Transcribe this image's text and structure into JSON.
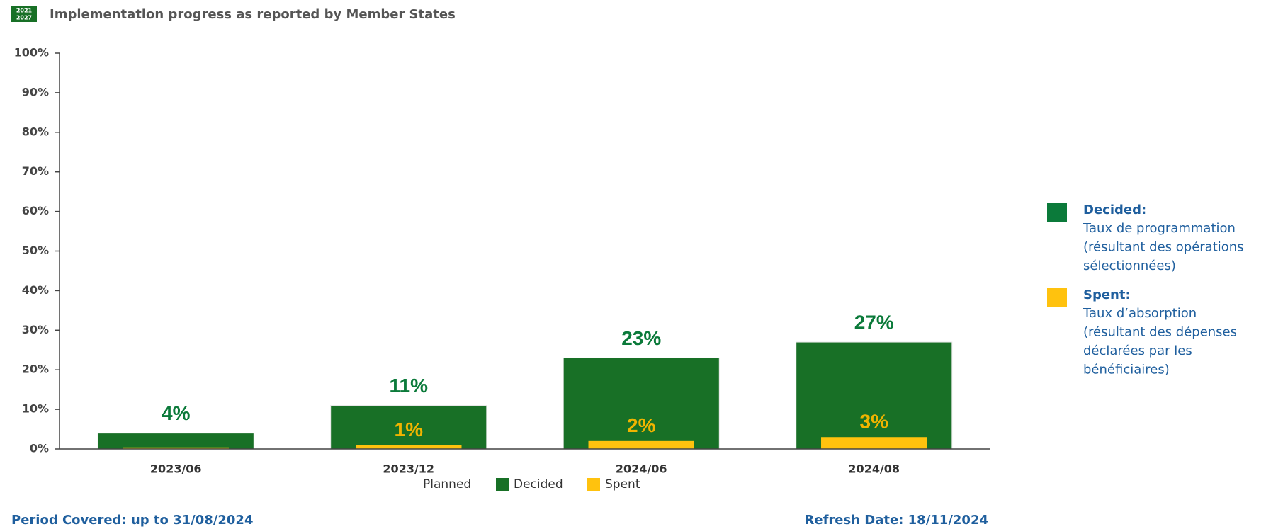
{
  "header": {
    "icon_top": "2021",
    "icon_bottom": "2027"
  },
  "chart_data": {
    "type": "bar",
    "title": "Implementation progress as reported by Member States",
    "categories": [
      "2023/06",
      "2023/12",
      "2024/06",
      "2024/08"
    ],
    "series": [
      {
        "name": "Decided",
        "color": "#187026",
        "label_color": "#0b7a3a",
        "values": [
          4,
          11,
          23,
          27
        ],
        "value_labels": [
          "4%",
          "11%",
          "23%",
          "27%"
        ]
      },
      {
        "name": "Spent",
        "color": "#ffc20e",
        "label_color": "#f0b400",
        "values": [
          0.4,
          1,
          2,
          3
        ],
        "value_labels": [
          null,
          "1%",
          "2%",
          "3%"
        ]
      }
    ],
    "legend_extra": "Planned",
    "ylim": [
      0,
      100
    ],
    "yticks": [
      {
        "value": 0,
        "label": "0%"
      },
      {
        "value": 10,
        "label": "10%"
      },
      {
        "value": 20,
        "label": "20%"
      },
      {
        "value": 30,
        "label": "30%"
      },
      {
        "value": 40,
        "label": "40%"
      },
      {
        "value": 50,
        "label": "50%"
      },
      {
        "value": 60,
        "label": "60%"
      },
      {
        "value": 70,
        "label": "70%"
      },
      {
        "value": 80,
        "label": "80%"
      },
      {
        "value": 90,
        "label": "90%"
      },
      {
        "value": 100,
        "label": "100%"
      }
    ],
    "grid": false
  },
  "side_legend": [
    {
      "label": "Decided:",
      "color": "#0b7a3a",
      "lines": [
        "Taux de programmation",
        "(résultant des opérations",
        "sélectionnées)"
      ]
    },
    {
      "label": "Spent:",
      "color": "#ffc20e",
      "lines": [
        "Taux d’absorption",
        "(résultant des dépenses",
        "déclarées par les",
        "bénéficiaires)"
      ]
    }
  ],
  "footer": {
    "period_covered": "Period Covered: up to 31/08/2024",
    "refresh_date": "Refresh Date: 18/11/2024"
  }
}
